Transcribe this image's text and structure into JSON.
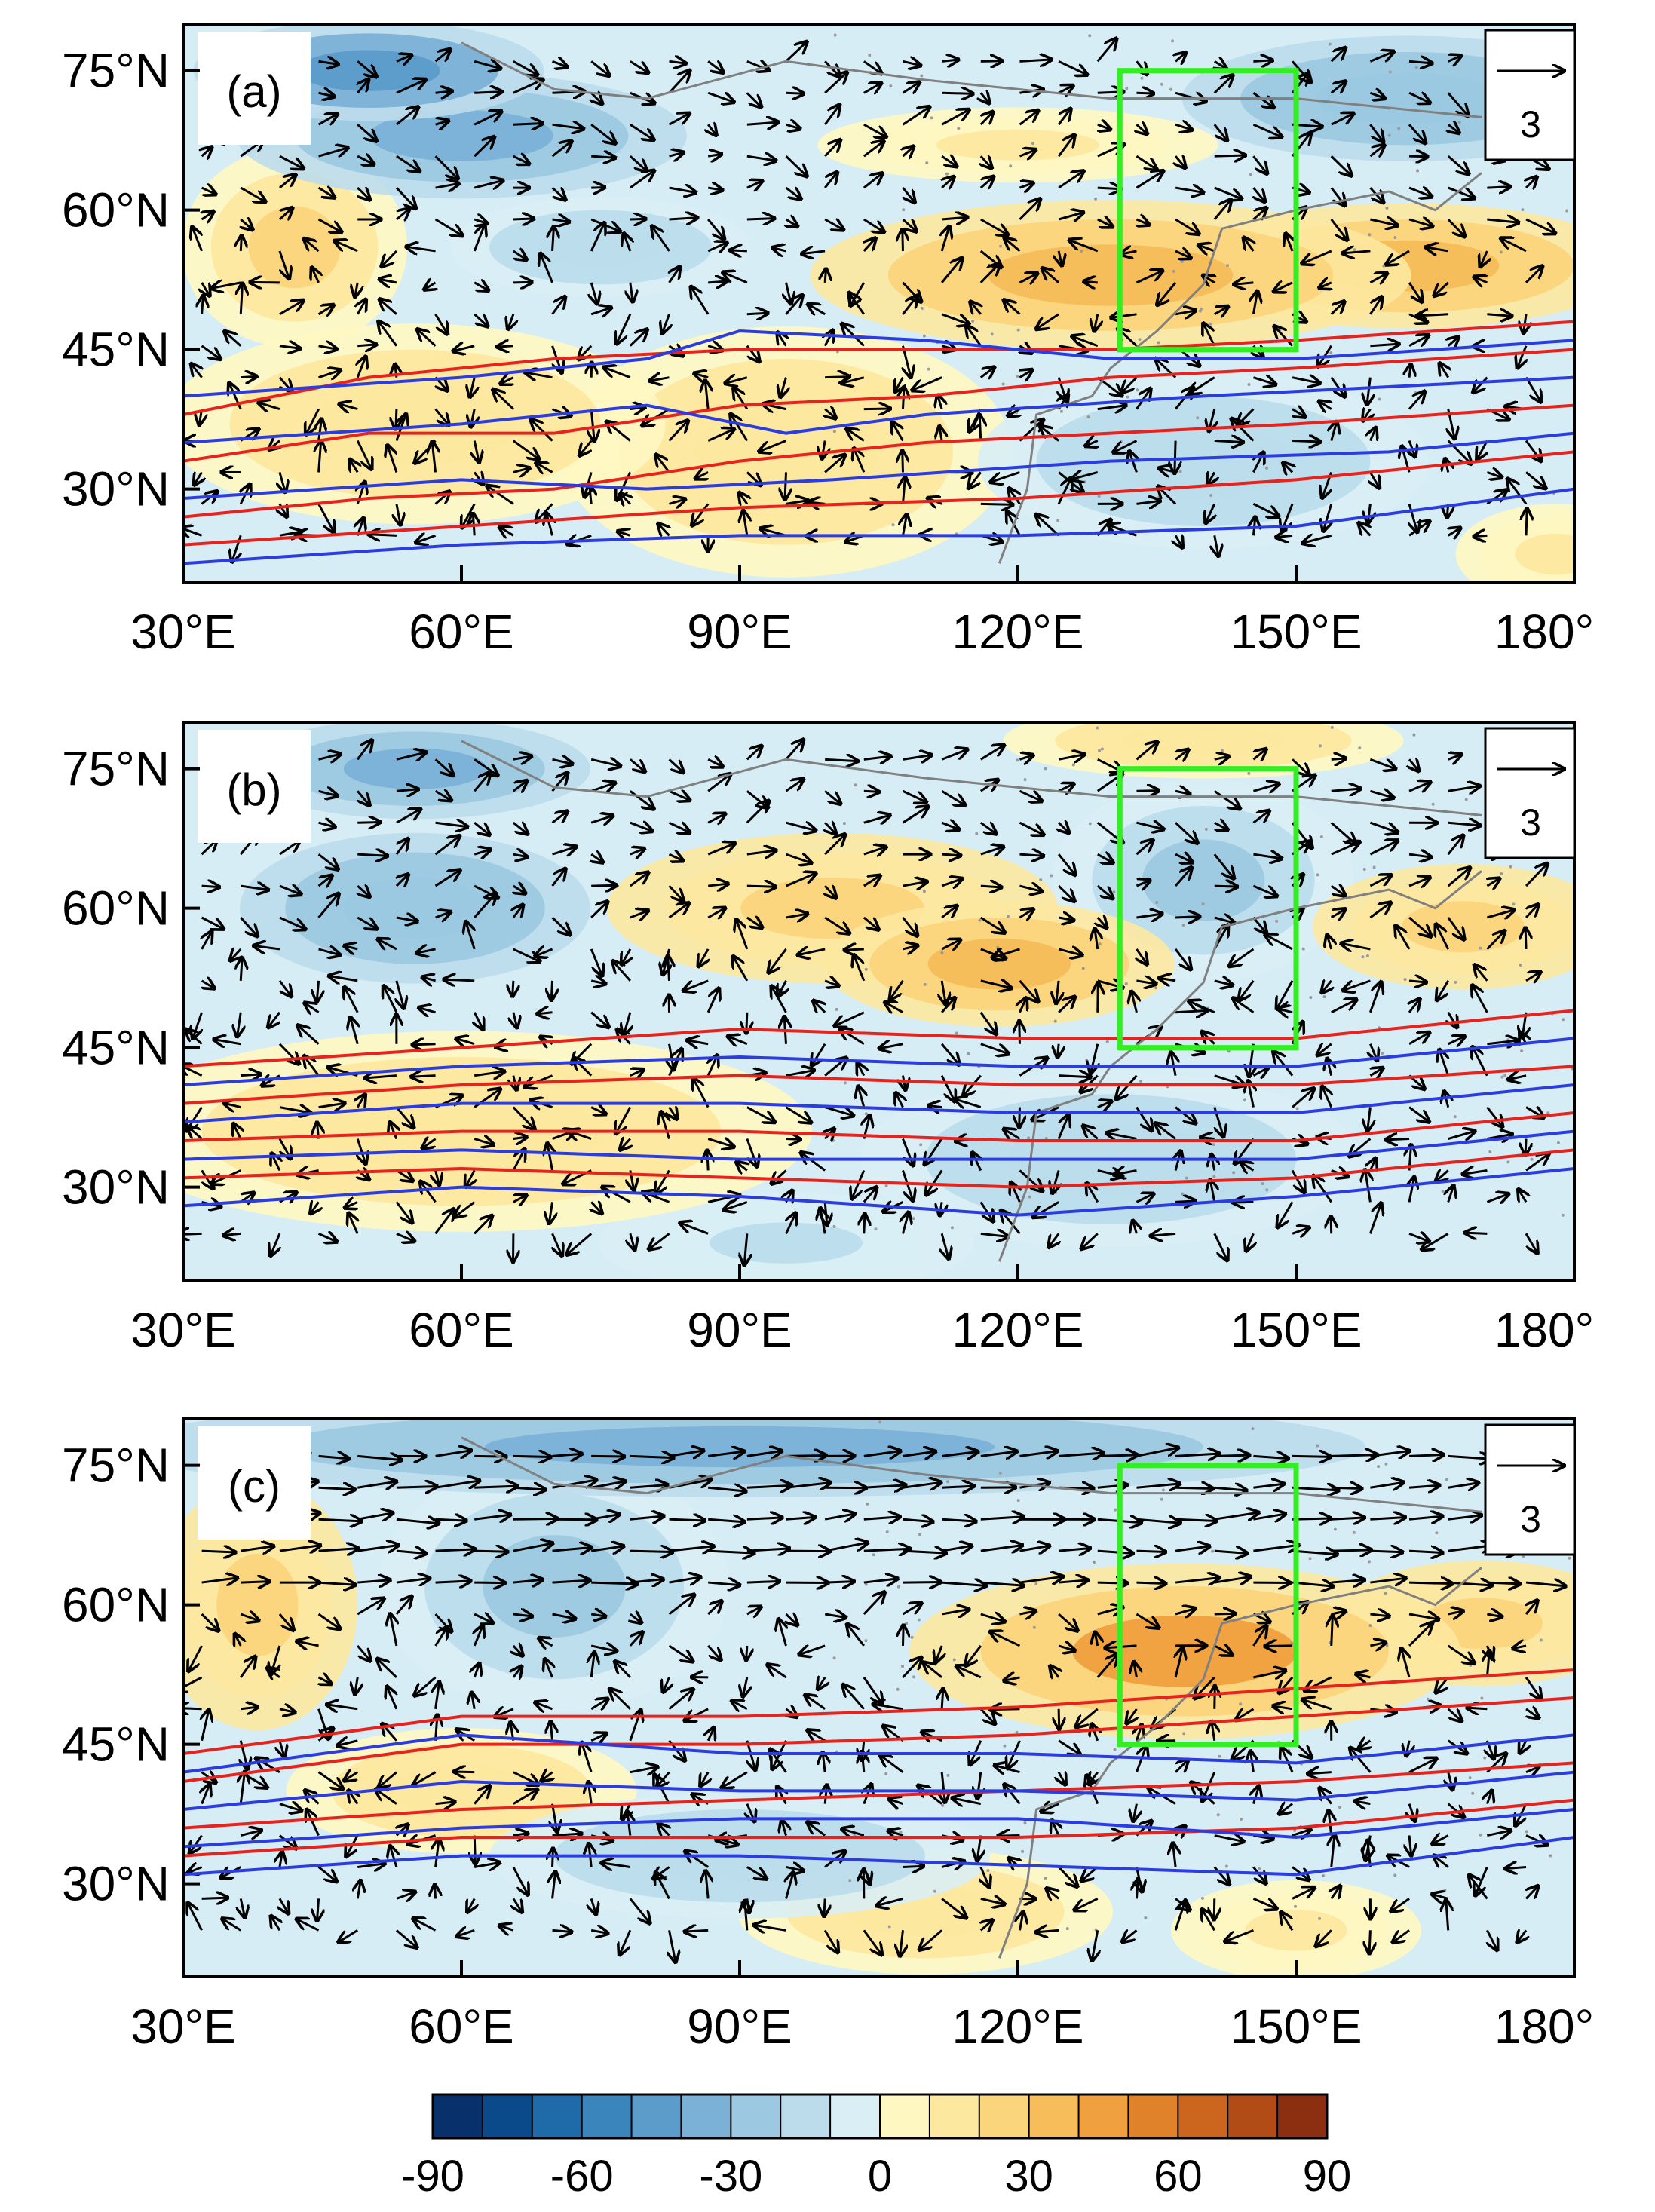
{
  "chart_data": {
    "type": "heatmap",
    "description_units": "shaded anomaly field with wind vectors and jet contours",
    "colorbar": {
      "colors": [
        "#08306b",
        "#0b4a8a",
        "#1f6aa8",
        "#3b85bd",
        "#5b9ccb",
        "#7bb1d7",
        "#9cc8e2",
        "#bcdcec",
        "#d9eef5",
        "#fff7c2",
        "#fde8a0",
        "#fbd57c",
        "#f6bd5a",
        "#f0a03e",
        "#e0822a",
        "#cc661f",
        "#b24c16",
        "#8c2f10"
      ],
      "ticks": [
        "-90",
        "-60",
        "-30",
        "0",
        "30",
        "60",
        "90"
      ],
      "range": [
        -90,
        90
      ]
    },
    "reference_vector": "3",
    "lon_ticks": [
      "30°E",
      "60°E",
      "90°E",
      "120°E",
      "150°E",
      "180°"
    ],
    "lat_ticks": [
      "75°N",
      "60°N",
      "45°N",
      "30°N"
    ],
    "lon_range": [
      30,
      180
    ],
    "lat_range": [
      20,
      80
    ],
    "box": {
      "lon": [
        131,
        150
      ],
      "lat": [
        45,
        75
      ],
      "color": "#33ee22"
    },
    "panels": [
      {
        "label": "(a)",
        "anomalies": [
          {
            "lon": 50,
            "lat": 75,
            "rx": 14,
            "ry": 4,
            "v": -45
          },
          {
            "lon": 60,
            "lat": 68,
            "rx": 18,
            "ry": 5,
            "v": -35
          },
          {
            "lon": 42,
            "lat": 56,
            "rx": 9,
            "ry": 8,
            "v": 20
          },
          {
            "lon": 75,
            "lat": 56,
            "rx": 12,
            "ry": 4,
            "v": -20
          },
          {
            "lon": 120,
            "lat": 67,
            "rx": 16,
            "ry": 3,
            "v": 12
          },
          {
            "lon": 130,
            "lat": 53,
            "rx": 24,
            "ry": 6,
            "v": 35
          },
          {
            "lon": 162,
            "lat": 54,
            "rx": 18,
            "ry": 5,
            "v": 30
          },
          {
            "lon": 162,
            "lat": 72,
            "rx": 18,
            "ry": 5,
            "v": -30
          },
          {
            "lon": 55,
            "lat": 37,
            "rx": 20,
            "ry": 8,
            "v": 18
          },
          {
            "lon": 95,
            "lat": 34,
            "rx": 18,
            "ry": 10,
            "v": 15
          },
          {
            "lon": 140,
            "lat": 33,
            "rx": 18,
            "ry": 7,
            "v": -20
          },
          {
            "lon": 178,
            "lat": 23,
            "rx": 8,
            "ry": 4,
            "v": 12
          }
        ],
        "red_contours": [
          [
            [
              30,
              38
            ],
            [
              50,
              42
            ],
            [
              70,
              44
            ],
            [
              90,
              45
            ],
            [
              110,
              45
            ],
            [
              130,
              45
            ],
            [
              150,
              46
            ],
            [
              180,
              48
            ]
          ],
          [
            [
              30,
              33
            ],
            [
              50,
              36
            ],
            [
              70,
              36
            ],
            [
              90,
              39
            ],
            [
              110,
              40
            ],
            [
              130,
              42
            ],
            [
              150,
              43
            ],
            [
              180,
              45
            ]
          ],
          [
            [
              30,
              27
            ],
            [
              50,
              29
            ],
            [
              70,
              30
            ],
            [
              90,
              33
            ],
            [
              110,
              35
            ],
            [
              130,
              36
            ],
            [
              150,
              37
            ],
            [
              180,
              39
            ]
          ],
          [
            [
              30,
              24
            ],
            [
              60,
              26
            ],
            [
              90,
              28
            ],
            [
              120,
              29
            ],
            [
              150,
              31
            ],
            [
              180,
              34
            ]
          ]
        ],
        "blue_contours": [
          [
            [
              30,
              40
            ],
            [
              60,
              42
            ],
            [
              80,
              44
            ],
            [
              90,
              47
            ],
            [
              110,
              46
            ],
            [
              130,
              44
            ],
            [
              150,
              44
            ],
            [
              180,
              46
            ]
          ],
          [
            [
              30,
              35
            ],
            [
              60,
              37
            ],
            [
              80,
              39
            ],
            [
              95,
              36
            ],
            [
              110,
              38
            ],
            [
              140,
              40
            ],
            [
              180,
              42
            ]
          ],
          [
            [
              30,
              29
            ],
            [
              60,
              31
            ],
            [
              80,
              30
            ],
            [
              100,
              31
            ],
            [
              130,
              33
            ],
            [
              160,
              34
            ],
            [
              180,
              36
            ]
          ],
          [
            [
              30,
              22
            ],
            [
              60,
              24
            ],
            [
              90,
              25
            ],
            [
              120,
              25
            ],
            [
              150,
              26
            ],
            [
              180,
              30
            ]
          ]
        ],
        "vector_pattern": "mixed"
      },
      {
        "label": "(b)",
        "anomalies": [
          {
            "lon": 55,
            "lat": 75,
            "rx": 14,
            "ry": 4,
            "v": -35
          },
          {
            "lon": 55,
            "lat": 60,
            "rx": 14,
            "ry": 6,
            "v": -30
          },
          {
            "lon": 100,
            "lat": 60,
            "rx": 18,
            "ry": 6,
            "v": 25
          },
          {
            "lon": 118,
            "lat": 54,
            "rx": 14,
            "ry": 5,
            "v": 35
          },
          {
            "lon": 140,
            "lat": 63,
            "rx": 12,
            "ry": 8,
            "v": -22
          },
          {
            "lon": 168,
            "lat": 58,
            "rx": 12,
            "ry": 5,
            "v": 25
          },
          {
            "lon": 140,
            "lat": 78,
            "rx": 16,
            "ry": 3,
            "v": 15
          },
          {
            "lon": 60,
            "lat": 36,
            "rx": 28,
            "ry": 8,
            "v": 15
          },
          {
            "lon": 130,
            "lat": 33,
            "rx": 20,
            "ry": 7,
            "v": -18
          },
          {
            "lon": 95,
            "lat": 24,
            "rx": 15,
            "ry": 4,
            "v": -12
          }
        ],
        "red_contours": [
          [
            [
              30,
              43
            ],
            [
              60,
              45
            ],
            [
              90,
              47
            ],
            [
              120,
              46
            ],
            [
              150,
              46
            ],
            [
              180,
              49
            ]
          ],
          [
            [
              30,
              39
            ],
            [
              60,
              41
            ],
            [
              90,
              42
            ],
            [
              120,
              41
            ],
            [
              150,
              41
            ],
            [
              180,
              43
            ]
          ],
          [
            [
              30,
              35
            ],
            [
              60,
              36
            ],
            [
              90,
              36
            ],
            [
              120,
              35
            ],
            [
              150,
              35
            ],
            [
              180,
              38
            ]
          ],
          [
            [
              30,
              31
            ],
            [
              60,
              32
            ],
            [
              90,
              31
            ],
            [
              120,
              30
            ],
            [
              150,
              31
            ],
            [
              180,
              34
            ]
          ]
        ],
        "blue_contours": [
          [
            [
              30,
              41
            ],
            [
              60,
              43
            ],
            [
              90,
              44
            ],
            [
              120,
              43
            ],
            [
              150,
              43
            ],
            [
              180,
              46
            ]
          ],
          [
            [
              30,
              37
            ],
            [
              60,
              39
            ],
            [
              90,
              39
            ],
            [
              120,
              38
            ],
            [
              150,
              38
            ],
            [
              180,
              41
            ]
          ],
          [
            [
              30,
              33
            ],
            [
              60,
              34
            ],
            [
              90,
              33
            ],
            [
              120,
              33
            ],
            [
              150,
              33
            ],
            [
              180,
              36
            ]
          ],
          [
            [
              30,
              28
            ],
            [
              60,
              30
            ],
            [
              90,
              29
            ],
            [
              120,
              27
            ],
            [
              150,
              29
            ],
            [
              180,
              32
            ]
          ]
        ],
        "vector_pattern": "mixed"
      },
      {
        "label": "(c)",
        "anomalies": [
          {
            "lon": 90,
            "lat": 77,
            "rx": 50,
            "ry": 4,
            "v": -40
          },
          {
            "lon": 70,
            "lat": 62,
            "rx": 14,
            "ry": 10,
            "v": -25
          },
          {
            "lon": 38,
            "lat": 60,
            "rx": 8,
            "ry": 10,
            "v": 25
          },
          {
            "lon": 138,
            "lat": 55,
            "rx": 22,
            "ry": 7,
            "v": 40
          },
          {
            "lon": 170,
            "lat": 58,
            "rx": 12,
            "ry": 5,
            "v": 25
          },
          {
            "lon": 60,
            "lat": 40,
            "rx": 14,
            "ry": 5,
            "v": 15
          },
          {
            "lon": 110,
            "lat": 27,
            "rx": 15,
            "ry": 5,
            "v": 15
          },
          {
            "lon": 150,
            "lat": 25,
            "rx": 10,
            "ry": 4,
            "v": 12
          },
          {
            "lon": 90,
            "lat": 33,
            "rx": 20,
            "ry": 5,
            "v": -15
          }
        ],
        "red_contours": [
          [
            [
              30,
              44
            ],
            [
              60,
              48
            ],
            [
              90,
              48
            ],
            [
              120,
              49
            ],
            [
              150,
              51
            ],
            [
              180,
              53
            ]
          ],
          [
            [
              30,
              41
            ],
            [
              60,
              45
            ],
            [
              90,
              45
            ],
            [
              120,
              46
            ],
            [
              150,
              48
            ],
            [
              180,
              50
            ]
          ],
          [
            [
              30,
              36
            ],
            [
              60,
              38
            ],
            [
              90,
              39
            ],
            [
              120,
              40
            ],
            [
              150,
              41
            ],
            [
              180,
              43
            ]
          ],
          [
            [
              30,
              33
            ],
            [
              60,
              35
            ],
            [
              90,
              35
            ],
            [
              120,
              35
            ],
            [
              150,
              36
            ],
            [
              180,
              39
            ]
          ]
        ],
        "blue_contours": [
          [
            [
              30,
              42
            ],
            [
              60,
              46
            ],
            [
              90,
              44
            ],
            [
              120,
              44
            ],
            [
              150,
              43
            ],
            [
              180,
              46
            ]
          ],
          [
            [
              30,
              38
            ],
            [
              60,
              41
            ],
            [
              90,
              40
            ],
            [
              120,
              40
            ],
            [
              150,
              39
            ],
            [
              180,
              42
            ]
          ],
          [
            [
              30,
              34
            ],
            [
              60,
              36
            ],
            [
              90,
              37
            ],
            [
              120,
              37
            ],
            [
              150,
              35
            ],
            [
              180,
              38
            ]
          ],
          [
            [
              30,
              31
            ],
            [
              60,
              33
            ],
            [
              90,
              33
            ],
            [
              120,
              32
            ],
            [
              150,
              31
            ],
            [
              180,
              35
            ]
          ]
        ],
        "vector_pattern": "eastward_north"
      }
    ]
  }
}
